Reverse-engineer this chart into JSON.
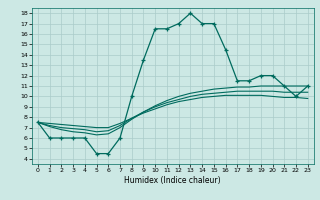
{
  "title": "",
  "xlabel": "Humidex (Indice chaleur)",
  "bg_color": "#cce8e4",
  "grid_color": "#aaccca",
  "line_color": "#006b5e",
  "xlim": [
    -0.5,
    23.5
  ],
  "ylim": [
    3.5,
    18.5
  ],
  "xticks": [
    0,
    1,
    2,
    3,
    4,
    5,
    6,
    7,
    8,
    9,
    10,
    11,
    12,
    13,
    14,
    15,
    16,
    17,
    18,
    19,
    20,
    21,
    22,
    23
  ],
  "yticks": [
    4,
    5,
    6,
    7,
    8,
    9,
    10,
    11,
    12,
    13,
    14,
    15,
    16,
    17,
    18
  ],
  "main_y": [
    7.5,
    6.0,
    6.0,
    6.0,
    6.0,
    4.5,
    4.5,
    6.0,
    10.0,
    13.5,
    16.5,
    16.5,
    17.0,
    18.0,
    17.0,
    17.0,
    14.5,
    11.5,
    11.5,
    12.0,
    12.0,
    11.0,
    10.0,
    11.0
  ],
  "line2_y": [
    7.5,
    7.1,
    6.8,
    6.6,
    6.5,
    6.3,
    6.4,
    7.0,
    7.8,
    8.5,
    9.1,
    9.6,
    10.0,
    10.3,
    10.5,
    10.7,
    10.8,
    10.9,
    10.9,
    11.0,
    11.0,
    11.0,
    11.0,
    11.0
  ],
  "line3_y": [
    7.5,
    7.2,
    7.0,
    6.9,
    6.8,
    6.6,
    6.7,
    7.2,
    7.9,
    8.5,
    9.0,
    9.4,
    9.7,
    10.0,
    10.2,
    10.3,
    10.4,
    10.5,
    10.5,
    10.5,
    10.5,
    10.4,
    10.4,
    10.4
  ],
  "line4_y": [
    7.5,
    7.4,
    7.3,
    7.2,
    7.1,
    7.0,
    7.0,
    7.4,
    7.9,
    8.4,
    8.8,
    9.2,
    9.5,
    9.7,
    9.9,
    10.0,
    10.1,
    10.1,
    10.1,
    10.1,
    10.0,
    9.9,
    9.9,
    9.8
  ],
  "x": [
    0,
    1,
    2,
    3,
    4,
    5,
    6,
    7,
    8,
    9,
    10,
    11,
    12,
    13,
    14,
    15,
    16,
    17,
    18,
    19,
    20,
    21,
    22,
    23
  ]
}
